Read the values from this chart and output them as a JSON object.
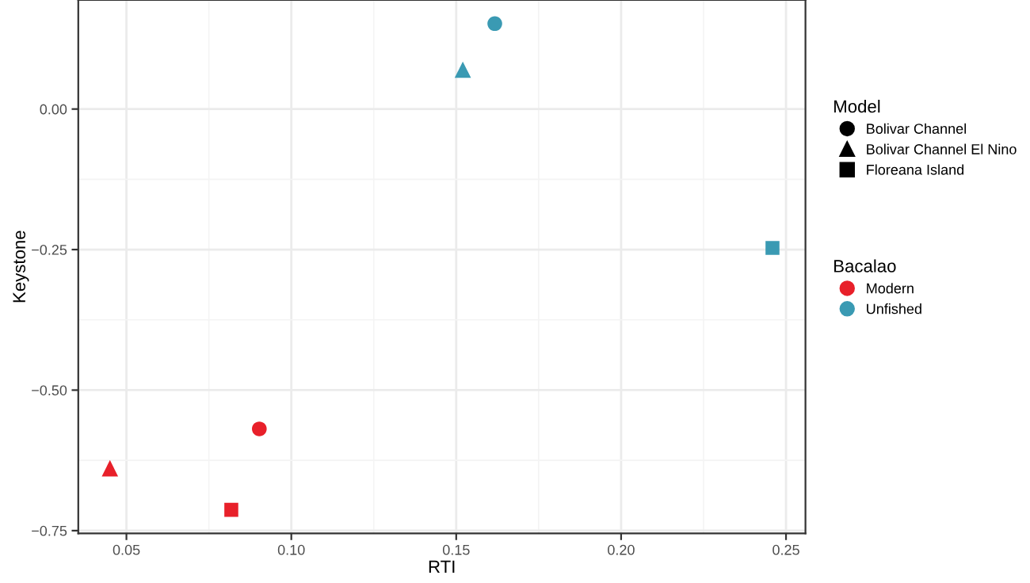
{
  "chart_data": {
    "type": "scatter",
    "xlabel": "RTI",
    "ylabel": "Keystone",
    "xlim": [
      0.0354,
      0.2559
    ],
    "xticks": [
      {
        "value": 0.05,
        "label": "0.05"
      },
      {
        "value": 0.1,
        "label": "0.10"
      },
      {
        "value": 0.15,
        "label": "0.15"
      },
      {
        "value": 0.2,
        "label": "0.20"
      },
      {
        "value": 0.25,
        "label": "0.25"
      }
    ],
    "ylim": [
      -0.755,
      0.194
    ],
    "yticks": [
      {
        "value": 0,
        "label": "0.00"
      },
      {
        "value": -0.25,
        "label": "−0.25"
      },
      {
        "value": -0.5,
        "label": "−0.50"
      },
      {
        "value": -0.75,
        "label": "−0.75"
      }
    ],
    "grid": true,
    "legend": "right",
    "legend_title": [
      "Model",
      "Bacalao"
    ],
    "series": [
      {
        "name": "Bolivar Channel",
        "marker": "circle",
        "x": [
          0.0903,
          0.1617
        ],
        "values": [
          -0.569,
          0.152
        ],
        "colors": [
          "#e8202a",
          "#3a9ab3"
        ]
      },
      {
        "name": "Bolivar Channel El Nino",
        "marker": "triangle",
        "x": [
          0.045,
          0.152
        ],
        "values": [
          -0.639,
          0.07
        ],
        "colors": [
          "#e8202a",
          "#3a9ab3"
        ]
      },
      {
        "name": "Floreana Island",
        "marker": "square",
        "x": [
          0.0818,
          0.2459
        ],
        "values": [
          -0.713,
          -0.247
        ],
        "colors": [
          "#e8202a",
          "#3a9ab3"
        ]
      },
      {
        "name": "Modern",
        "color": "#e8202a"
      },
      {
        "name": "Unfished",
        "color": "#3a9ab3"
      }
    ]
  }
}
